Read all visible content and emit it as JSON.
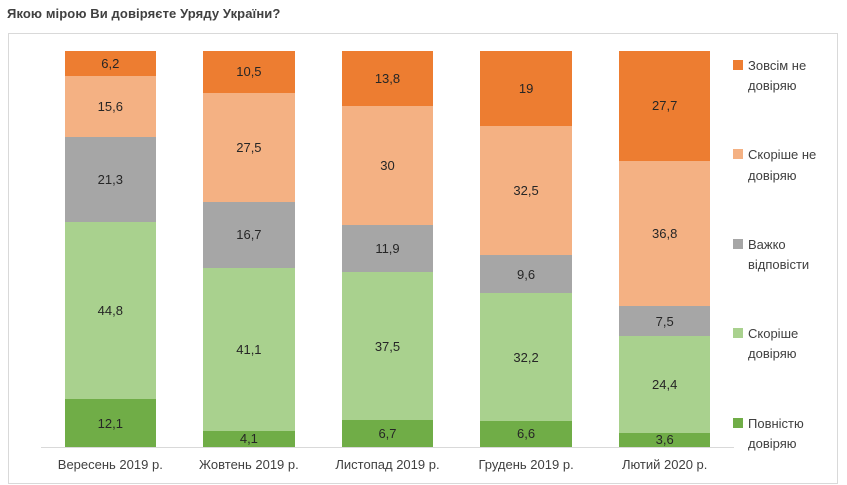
{
  "title": "Якою мірою Ви довіряєте Уряду України?",
  "colors": {
    "frame_border": "#d9d9d9",
    "axis_line": "#d9d9d9",
    "title_text": "#404040",
    "data_label_text": "#262626",
    "orange": "#ED7D31",
    "light_orange": "#F4B183",
    "gray": "#A6A6A6",
    "light_green": "#A9D18E",
    "green": "#70AD47"
  },
  "chart_data": {
    "type": "bar",
    "subtype": "stacked-100-percent-column",
    "title": "Якою мірою Ви довіряєте Уряду України?",
    "xlabel": "",
    "ylabel": "",
    "ylim": [
      0,
      100
    ],
    "grid": false,
    "legend_position": "right",
    "value_format": "comma-decimal",
    "categories": [
      "Вересень 2019 р.",
      "Жовтень 2019 р.",
      "Листопад 2019 р.",
      "Грудень 2019 р.",
      "Лютий 2020 р."
    ],
    "series": [
      {
        "name": "Повністю довіряю",
        "color": "#70AD47",
        "values": [
          12.1,
          4.1,
          6.7,
          6.6,
          3.6
        ],
        "labels": [
          "12,1",
          "4,1",
          "6,7",
          "6,6",
          "3,6"
        ]
      },
      {
        "name": "Скоріше довіряю",
        "color": "#A9D18E",
        "values": [
          44.8,
          41.1,
          37.5,
          32.2,
          24.4
        ],
        "labels": [
          "44,8",
          "41,1",
          "37,5",
          "32,2",
          "24,4"
        ]
      },
      {
        "name": "Важко відповісти",
        "color": "#A6A6A6",
        "values": [
          21.3,
          16.7,
          11.9,
          9.6,
          7.5
        ],
        "labels": [
          "21,3",
          "16,7",
          "11,9",
          "9,6",
          "7,5"
        ]
      },
      {
        "name": "Скоріше не довіряю",
        "color": "#F4B183",
        "values": [
          15.6,
          27.5,
          30,
          32.5,
          36.8
        ],
        "labels": [
          "15,6",
          "27,5",
          "30",
          "32,5",
          "36,8"
        ]
      },
      {
        "name": "Зовсім не довіряю",
        "color": "#ED7D31",
        "values": [
          6.2,
          10.5,
          13.8,
          19,
          27.7
        ],
        "labels": [
          "6,2",
          "10,5",
          "13,8",
          "19",
          "27,7"
        ]
      }
    ],
    "legend_order": [
      "Зовсім не довіряю",
      "Скоріше не довіряю",
      "Важко відповісти",
      "Скоріше довіряю",
      "Повністю довіряю"
    ]
  }
}
